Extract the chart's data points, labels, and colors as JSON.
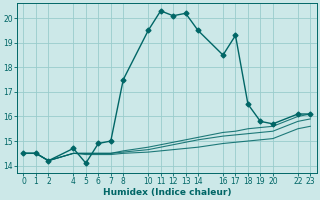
{
  "title": "",
  "xlabel": "Humidex (Indice chaleur)",
  "ylabel": "",
  "background_color": "#cce8e8",
  "grid_color": "#99cccc",
  "line_color": "#006666",
  "xlim": [
    -0.5,
    23.5
  ],
  "ylim": [
    13.7,
    20.6
  ],
  "yticks": [
    14,
    15,
    16,
    17,
    18,
    19,
    20
  ],
  "xticks": [
    0,
    1,
    2,
    4,
    5,
    6,
    7,
    8,
    10,
    11,
    12,
    13,
    14,
    16,
    17,
    18,
    19,
    20,
    22,
    23
  ],
  "series_main": {
    "x": [
      0,
      1,
      2,
      4,
      5,
      6,
      7,
      8,
      10,
      11,
      12,
      13,
      14,
      16,
      17,
      18,
      19,
      20,
      22,
      23
    ],
    "y": [
      14.5,
      14.5,
      14.2,
      14.7,
      14.1,
      14.9,
      15.0,
      17.5,
      19.5,
      20.3,
      20.1,
      20.2,
      19.5,
      18.5,
      19.3,
      16.5,
      15.8,
      15.7,
      16.1,
      16.1
    ]
  },
  "series_flat": [
    {
      "x": [
        0,
        1,
        2,
        4,
        5,
        6,
        7,
        8,
        10,
        11,
        12,
        13,
        14,
        16,
        17,
        18,
        19,
        20,
        22,
        23
      ],
      "y": [
        14.5,
        14.5,
        14.2,
        14.5,
        14.45,
        14.45,
        14.45,
        14.5,
        14.55,
        14.6,
        14.65,
        14.7,
        14.75,
        14.9,
        14.95,
        15.0,
        15.05,
        15.1,
        15.5,
        15.6
      ]
    },
    {
      "x": [
        0,
        1,
        2,
        4,
        5,
        6,
        7,
        8,
        10,
        11,
        12,
        13,
        14,
        16,
        17,
        18,
        19,
        20,
        22,
        23
      ],
      "y": [
        14.5,
        14.5,
        14.2,
        14.5,
        14.5,
        14.5,
        14.5,
        14.55,
        14.65,
        14.75,
        14.85,
        14.95,
        15.05,
        15.2,
        15.25,
        15.3,
        15.35,
        15.4,
        15.8,
        15.9
      ]
    },
    {
      "x": [
        0,
        1,
        2,
        4,
        5,
        6,
        7,
        8,
        10,
        11,
        12,
        13,
        14,
        16,
        17,
        18,
        19,
        20,
        22,
        23
      ],
      "y": [
        14.5,
        14.5,
        14.2,
        14.5,
        14.5,
        14.5,
        14.5,
        14.6,
        14.75,
        14.85,
        14.95,
        15.05,
        15.15,
        15.35,
        15.4,
        15.5,
        15.55,
        15.6,
        16.0,
        16.1
      ]
    }
  ]
}
